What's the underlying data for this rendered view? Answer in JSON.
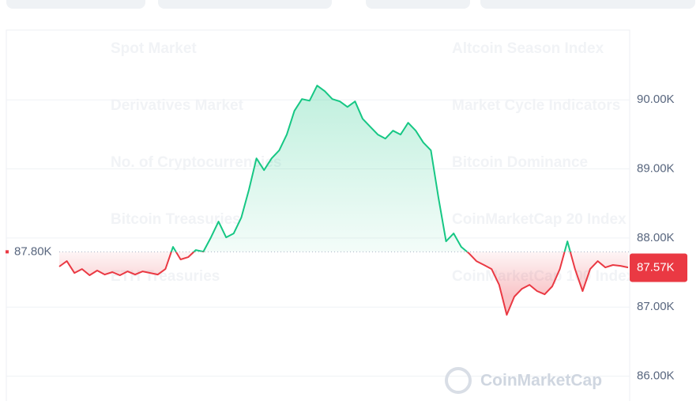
{
  "menu": [
    "Spot Market",
    "Altcoin Season Index",
    "Derivatives Market",
    "Market Cycle Indicators",
    "No. of Cryptocurrencies",
    "Bitcoin Dominance",
    "Bitcoin Treasuries",
    "CoinMarketCap 20 Index",
    "ETH Treasuries",
    "CoinMarketCap 100 Index"
  ],
  "watermark": "CoinMarketCap",
  "chart_data": {
    "type": "line",
    "values": [
      87586,
      87666,
      87494,
      87551,
      87460,
      87529,
      87471,
      87506,
      87460,
      87517,
      87471,
      87517,
      87494,
      87471,
      87551,
      87872,
      87689,
      87723,
      87826,
      87803,
      88009,
      88238,
      88009,
      88066,
      88295,
      88696,
      89153,
      88982,
      89153,
      89268,
      89497,
      89840,
      90011,
      89988,
      90206,
      90126,
      90011,
      89977,
      89897,
      89977,
      89725,
      89611,
      89497,
      89439,
      89554,
      89497,
      89668,
      89554,
      89382,
      89268,
      88581,
      87952,
      88066,
      87872,
      87780,
      87666,
      87609,
      87551,
      87322,
      86888,
      87151,
      87265,
      87322,
      87231,
      87185,
      87300,
      87551,
      87952,
      87551,
      87231,
      87551,
      87666,
      87574,
      87609,
      87597,
      87574
    ],
    "baseline": {
      "value": 87800,
      "label": "87.80K"
    },
    "last_price": {
      "value": 87570,
      "label": "87.57K"
    },
    "colors": {
      "up": "#16c784",
      "down": "#ea3943"
    },
    "ylim": [
      85640,
      91010
    ],
    "yticks": [
      {
        "value": 86000,
        "label": "86.00K"
      },
      {
        "value": 87000,
        "label": "87.00K"
      },
      {
        "value": 88000,
        "label": "88.00K"
      },
      {
        "value": 89000,
        "label": "89.00K"
      },
      {
        "value": 90000,
        "label": "90.00K"
      }
    ],
    "grid": true
  }
}
